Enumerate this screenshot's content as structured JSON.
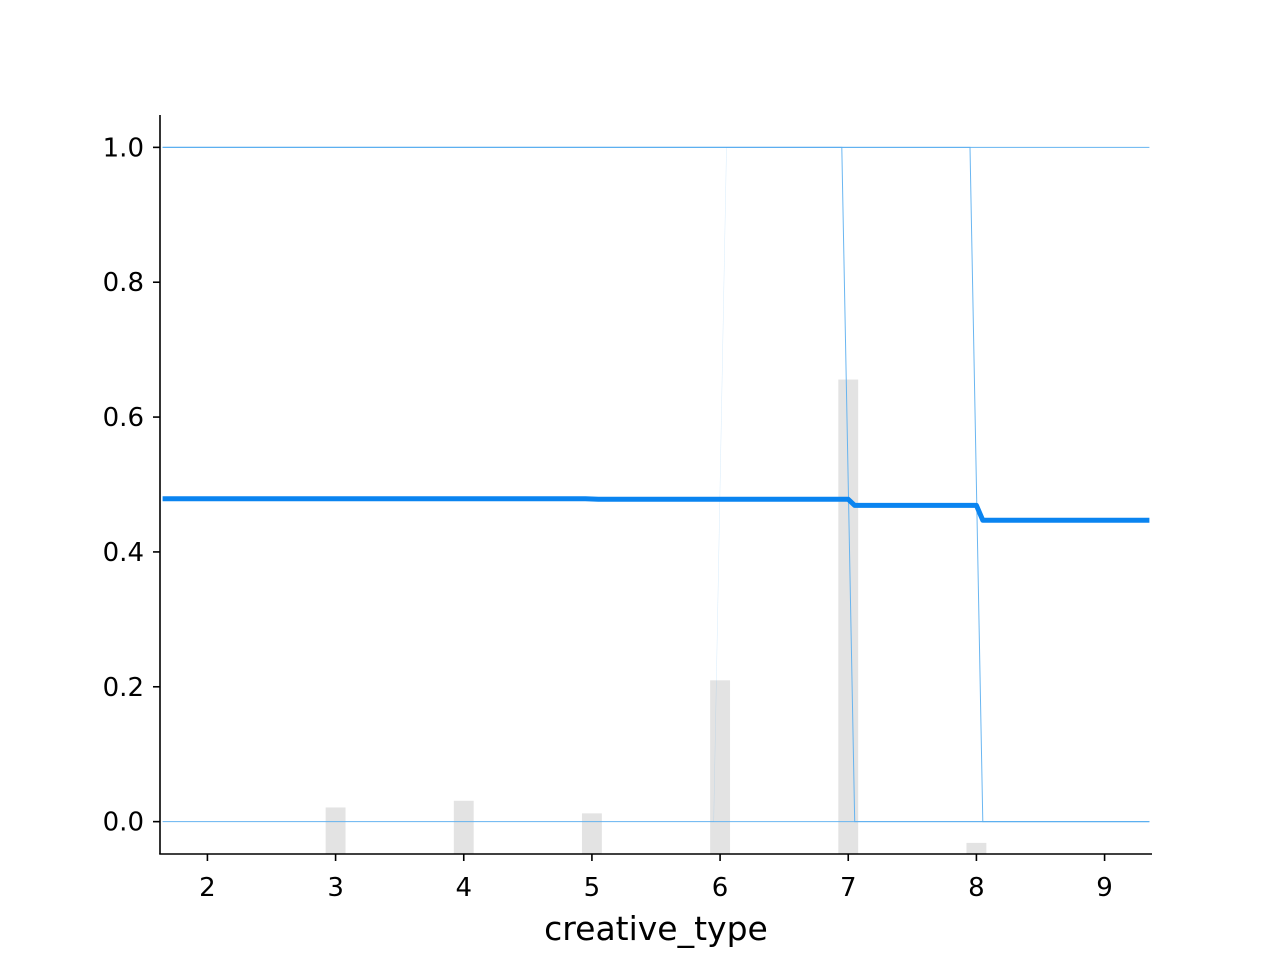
{
  "chart_data": {
    "type": "line",
    "title": "",
    "xlabel": "creative_type",
    "ylabel": "",
    "xlim": [
      1.63,
      9.37
    ],
    "ylim": [
      -0.048,
      1.048
    ],
    "x_ticks": [
      2,
      3,
      4,
      5,
      6,
      7,
      8,
      9
    ],
    "x_tick_labels": [
      "2",
      "3",
      "4",
      "5",
      "6",
      "7",
      "8",
      "9"
    ],
    "y_ticks": [
      0.0,
      0.2,
      0.4,
      0.6,
      0.8,
      1.0
    ],
    "y_tick_labels": [
      "0.0",
      "0.2",
      "0.4",
      "0.6",
      "0.8",
      "1.0"
    ],
    "grid": false,
    "average_line": {
      "color": "#0a84f0",
      "x": [
        1.65,
        4.95,
        5.05,
        6.95,
        7.0,
        7.05,
        7.95,
        8.0,
        8.05,
        9.35
      ],
      "y": [
        0.479,
        0.479,
        0.478,
        0.478,
        0.478,
        0.469,
        0.469,
        0.469,
        0.447,
        0.447
      ]
    },
    "individual_lines": {
      "color": "#5aaef0",
      "curves": [
        {
          "x": [
            1.65,
            9.35
          ],
          "y": [
            1.0,
            1.0
          ]
        },
        {
          "x": [
            1.65,
            9.35
          ],
          "y": [
            0.0,
            0.0
          ]
        },
        {
          "x": [
            1.65,
            6.95,
            7.05,
            9.35
          ],
          "y": [
            1.0,
            1.0,
            0.0,
            0.0
          ]
        },
        {
          "x": [
            1.65,
            7.95,
            8.05,
            9.35
          ],
          "y": [
            1.0,
            1.0,
            0.0,
            0.0
          ]
        },
        {
          "x": [
            1.65,
            5.95,
            6.05,
            9.35
          ],
          "y": [
            0.0,
            0.0,
            1.0,
            1.0
          ]
        }
      ]
    },
    "distribution_bars": {
      "color": "#e3e3e3",
      "x": [
        3,
        4,
        5,
        6,
        7,
        8
      ],
      "heights": [
        0.063,
        0.072,
        0.055,
        0.235,
        0.642,
        0.015
      ]
    }
  }
}
